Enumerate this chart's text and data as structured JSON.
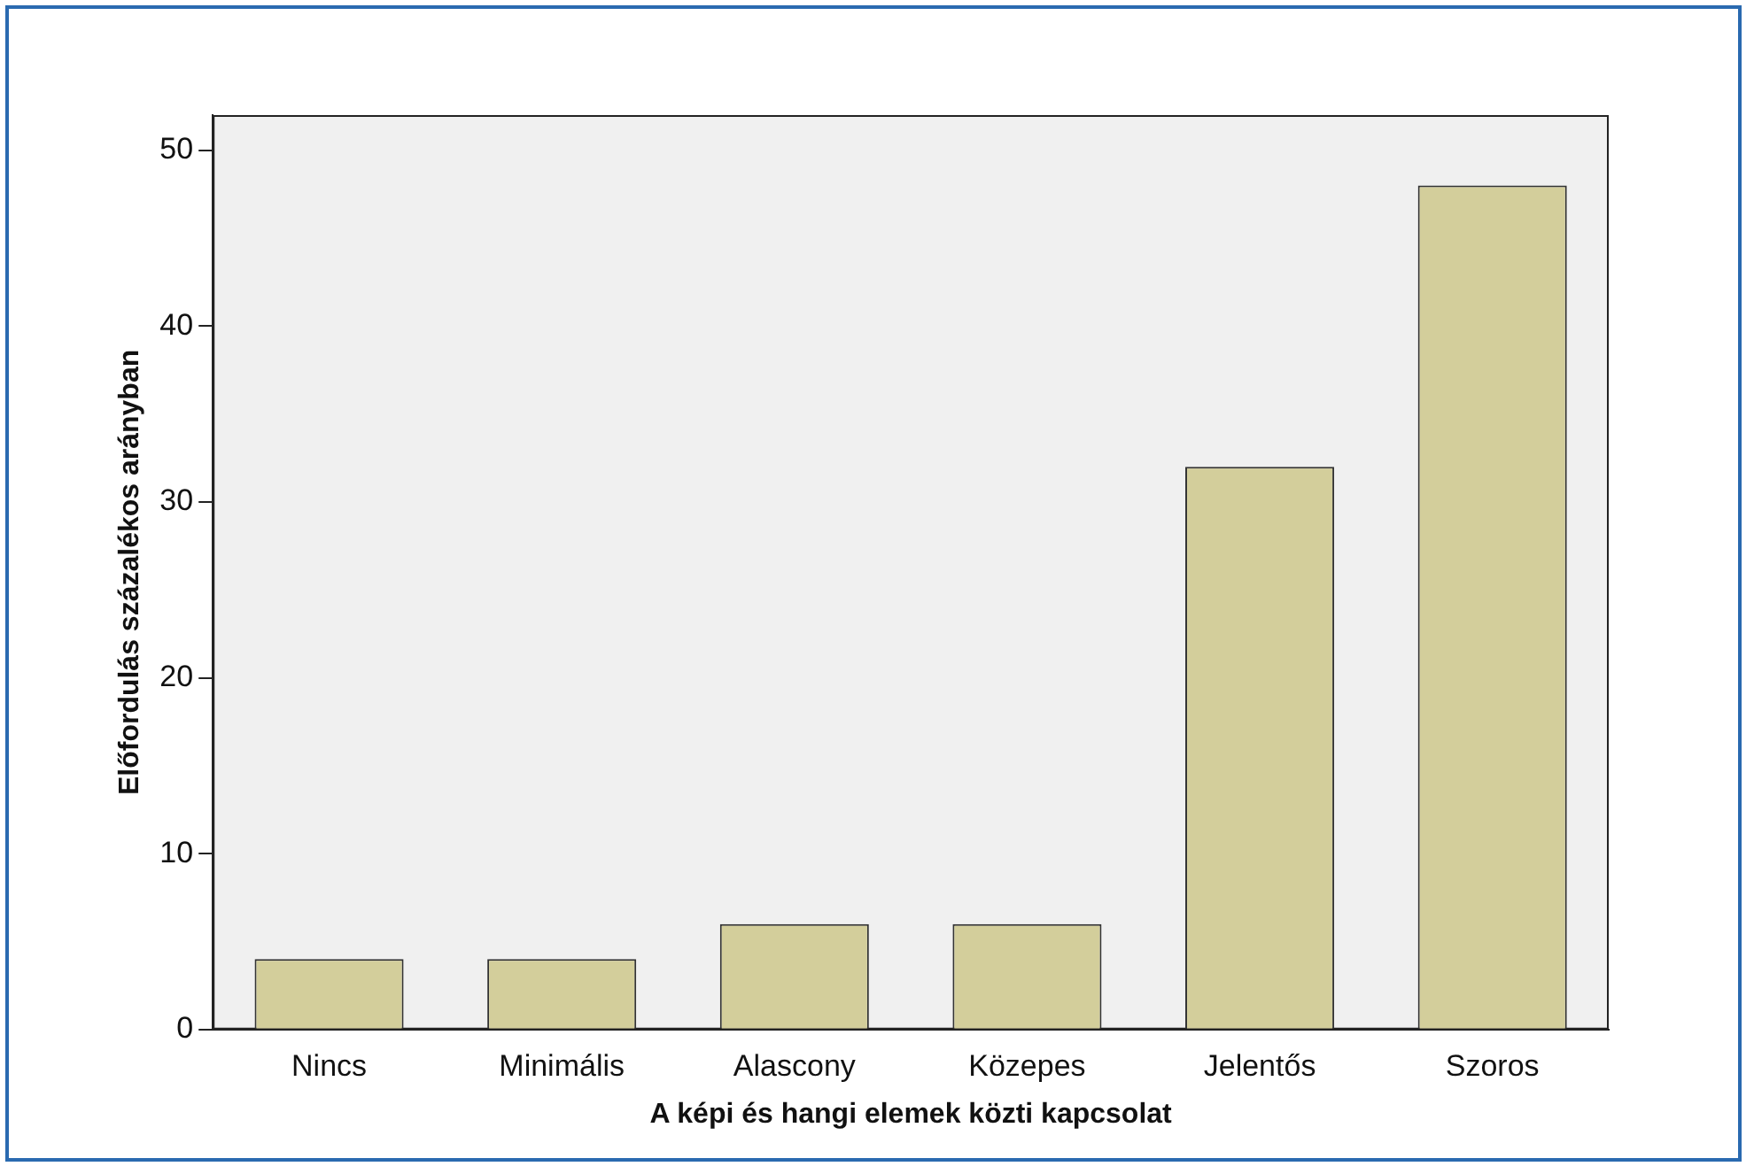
{
  "chart_data": {
    "type": "bar",
    "xlabel": "A képi és hangi elemek közti kapcsolat",
    "ylabel": "Előfordulás százalékos arányban",
    "categories": [
      "Nincs",
      "Minimális",
      "Alascony",
      "Közepes",
      "Jelentős",
      "Szoros"
    ],
    "values": [
      4,
      4,
      6,
      6,
      32,
      48
    ],
    "color": "#d3ce9b",
    "ylim": [
      0,
      52
    ],
    "yticks": [
      0,
      10,
      20,
      30,
      40,
      50
    ],
    "grid": false,
    "legend": false
  }
}
